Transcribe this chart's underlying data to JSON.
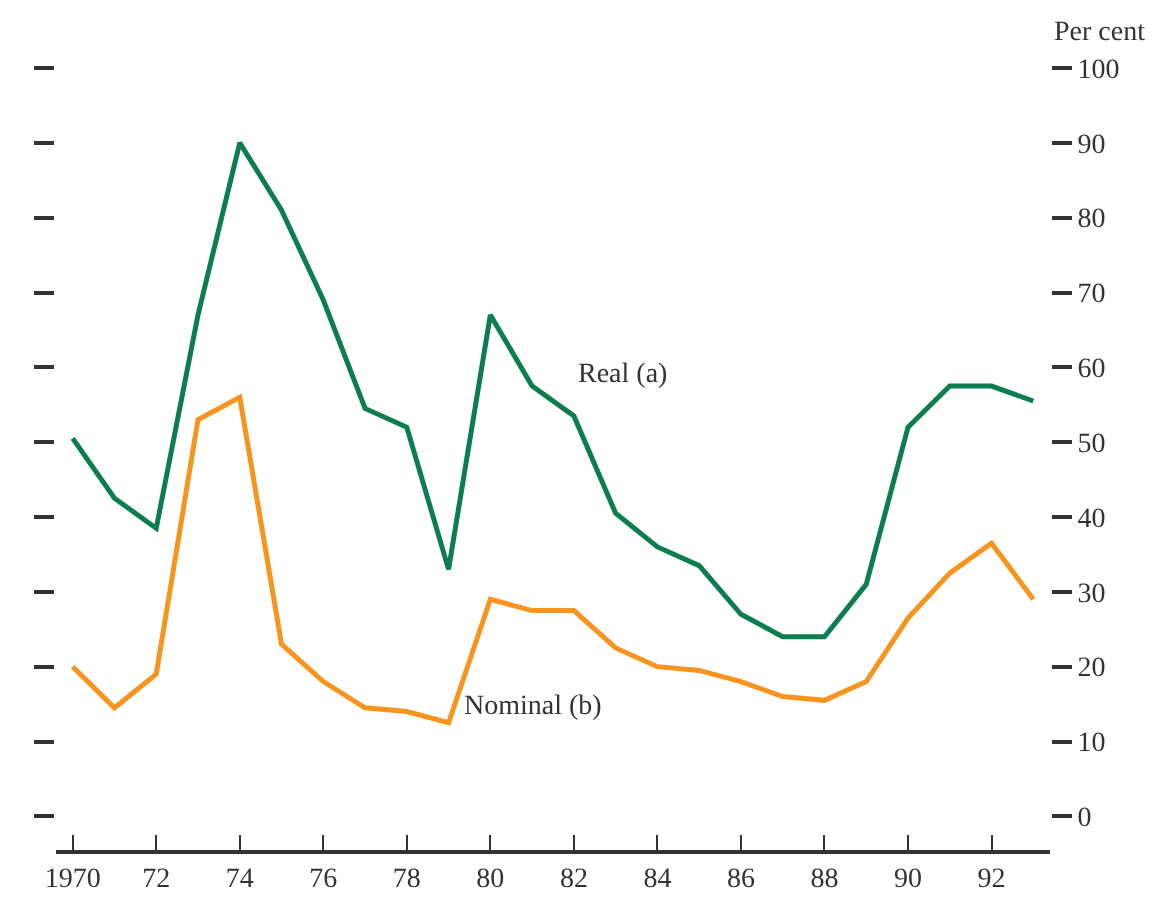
{
  "chart_data": {
    "type": "line",
    "ylabel": "Per cent",
    "x": [
      1970,
      1971,
      1972,
      1973,
      1974,
      1975,
      1976,
      1977,
      1978,
      1979,
      1980,
      1981,
      1982,
      1983,
      1984,
      1985,
      1986,
      1987,
      1988,
      1989,
      1990,
      1991,
      1992,
      1993
    ],
    "series": [
      {
        "name": "Real (a)",
        "color": "#0b7d4f",
        "values": [
          50.5,
          42.5,
          38.5,
          67,
          90,
          81,
          69,
          54.5,
          52,
          33,
          67,
          57.5,
          53.5,
          40.5,
          36,
          33.5,
          27,
          24,
          24,
          31,
          52,
          57.5,
          57.5,
          55.5
        ]
      },
      {
        "name": "Nominal (b)",
        "color": "#f7941d",
        "values": [
          20,
          14.5,
          19,
          53,
          56,
          23,
          18,
          14.5,
          14,
          12.5,
          29,
          27.5,
          27.5,
          22.5,
          20,
          19.5,
          18,
          16,
          15.5,
          18,
          26.5,
          32.5,
          36.5,
          29
        ]
      }
    ],
    "xlim": [
      1969.6,
      1993.4
    ],
    "xticks": [
      {
        "value": 1970,
        "label": "1970"
      },
      {
        "value": 1972,
        "label": "72"
      },
      {
        "value": 1974,
        "label": "74"
      },
      {
        "value": 1976,
        "label": "76"
      },
      {
        "value": 1978,
        "label": "78"
      },
      {
        "value": 1980,
        "label": "80"
      },
      {
        "value": 1982,
        "label": "82"
      },
      {
        "value": 1984,
        "label": "84"
      },
      {
        "value": 1986,
        "label": "86"
      },
      {
        "value": 1988,
        "label": "88"
      },
      {
        "value": 1990,
        "label": "90"
      },
      {
        "value": 1992,
        "label": "92"
      }
    ],
    "ylim": [
      -4.5,
      100
    ],
    "yticks": [
      0,
      10,
      20,
      30,
      40,
      50,
      60,
      70,
      80,
      90,
      100
    ],
    "legend": false,
    "marker": "none",
    "line_style": "solid"
  }
}
